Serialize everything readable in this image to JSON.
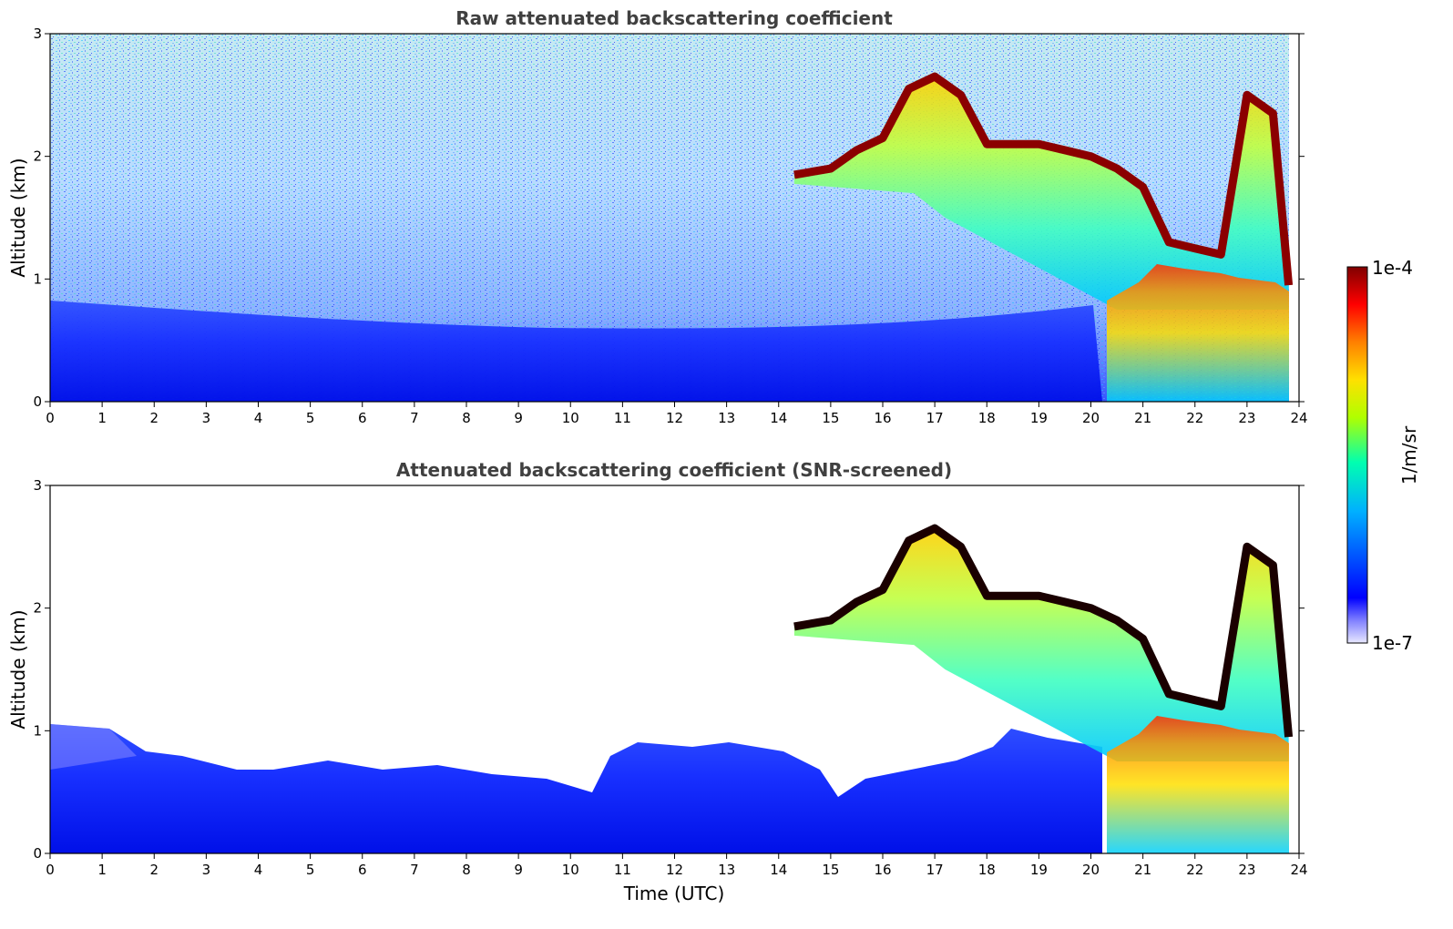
{
  "chart_data": [
    {
      "type": "heatmap",
      "title": "Raw attenuated backscattering coefficient",
      "xlabel": "",
      "ylabel": "Altitude (km)",
      "xlim": [
        0,
        24
      ],
      "ylim": [
        0,
        3
      ],
      "xticks": [
        "0",
        "1",
        "2",
        "3",
        "4",
        "5",
        "6",
        "7",
        "8",
        "9",
        "10",
        "11",
        "12",
        "13",
        "14",
        "15",
        "16",
        "17",
        "18",
        "19",
        "20",
        "21",
        "22",
        "23",
        "24"
      ],
      "yticks": [
        "0",
        "1",
        "2",
        "3"
      ],
      "cloud_top_profile": {
        "x": [
          14.3,
          15.0,
          15.5,
          16.0,
          16.5,
          17.0,
          17.5,
          18.0,
          19.0,
          19.5,
          20.0,
          20.5,
          21.0,
          21.5,
          22.0,
          22.5,
          23.0,
          23.5,
          23.8
        ],
        "y": [
          1.85,
          1.9,
          2.05,
          2.15,
          2.55,
          2.65,
          2.5,
          2.1,
          2.1,
          2.05,
          2.0,
          1.9,
          1.75,
          1.3,
          1.25,
          1.2,
          2.5,
          2.35,
          0.95
        ]
      },
      "boundary_layer_top_km": 0.75
    },
    {
      "type": "heatmap",
      "title": "Attenuated backscattering coefficient (SNR-screened)",
      "xlabel": "Time (UTC)",
      "ylabel": "Altitude (km)",
      "xlim": [
        0,
        24
      ],
      "ylim": [
        0,
        3
      ],
      "xticks": [
        "0",
        "1",
        "2",
        "3",
        "4",
        "5",
        "6",
        "7",
        "8",
        "9",
        "10",
        "11",
        "12",
        "13",
        "14",
        "15",
        "16",
        "17",
        "18",
        "19",
        "20",
        "21",
        "22",
        "23",
        "24"
      ],
      "yticks": [
        "0",
        "1",
        "2",
        "3"
      ],
      "boundary_layer_top_km": 0.75
    }
  ],
  "colorbar": {
    "label": "1/m/sr",
    "max_label": "1e-4",
    "min_label": "1e-7",
    "colormap": [
      "#e8e8ff",
      "#0000ff",
      "#00b0ff",
      "#00ffb0",
      "#b0ff00",
      "#ffe000",
      "#ff8000",
      "#ff0000",
      "#800000"
    ]
  }
}
